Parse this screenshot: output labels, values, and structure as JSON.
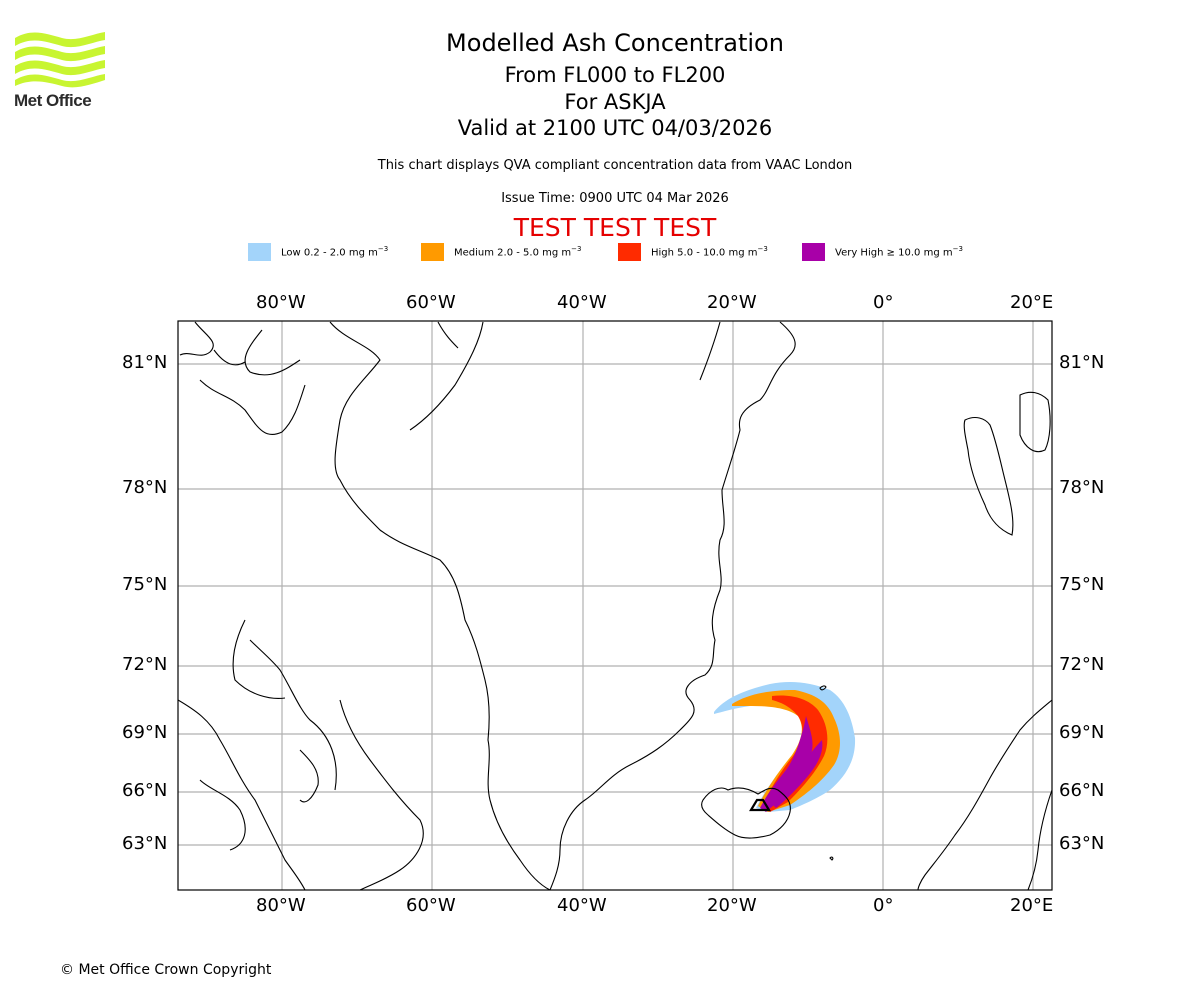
{
  "logo": {
    "text": "Met Office",
    "color": "#c8f531"
  },
  "title": {
    "line1": "Modelled Ash Concentration",
    "line2": "From FL000 to FL200",
    "line3": "For ASKJA",
    "line4": "Valid at 2100 UTC 04/03/2026"
  },
  "subtitle": "This chart displays QVA compliant concentration data from VAAC London",
  "issue_time": "Issue Time: 0900 UTC 04 Mar 2026",
  "test_banner": {
    "text": "TEST TEST TEST",
    "color": "#e50000"
  },
  "legend": [
    {
      "name": "Low",
      "label": "Low 0.2 - 2.0 mg m",
      "sup": "−3",
      "color": "#a3d4fa"
    },
    {
      "name": "Medium",
      "label": "Medium 2.0 - 5.0 mg m",
      "sup": "−3",
      "color": "#ff9a00"
    },
    {
      "name": "High",
      "label": "High 5.0 - 10.0 mg m",
      "sup": "−3",
      "color": "#ff2b00"
    },
    {
      "name": "Very High",
      "label": "Very High  ≥  10.0 mg m",
      "sup": "−3",
      "color": "#a800a8"
    }
  ],
  "axes": {
    "longitude_labels": [
      "80°W",
      "60°W",
      "40°W",
      "20°W",
      "0°",
      "20°E"
    ],
    "latitude_labels": [
      "81°N",
      "78°N",
      "75°N",
      "72°N",
      "69°N",
      "66°N",
      "63°N"
    ]
  },
  "volcano": "ASKJA",
  "copyright": "© Met Office Crown Copyright"
}
